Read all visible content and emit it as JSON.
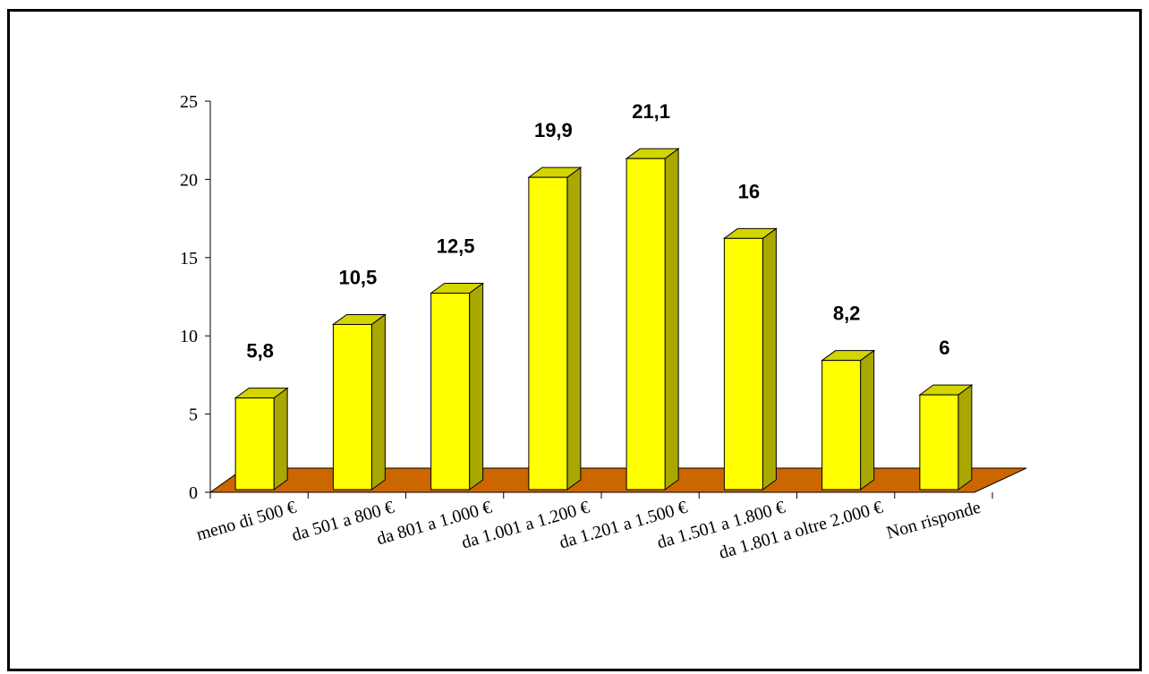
{
  "chart_data": {
    "type": "bar",
    "title": "",
    "xlabel": "",
    "ylabel": "",
    "categories": [
      "meno di 500 €",
      "da 501 a 800 €",
      "da 801 a 1.000 €",
      "da 1.001 a 1.200 €",
      "da 1.201 a 1.500 €",
      "da 1.501 a 1.800 €",
      "da 1.801 a oltre 2.000 €",
      "Non risponde"
    ],
    "values": [
      5.8,
      10.5,
      12.5,
      19.9,
      21.1,
      16,
      8.2,
      6
    ],
    "data_labels": [
      "5,8",
      "10,5",
      "12,5",
      "19,9",
      "21,1",
      "16",
      "8,2",
      "6"
    ],
    "ylim": [
      0,
      25
    ],
    "yticks": [
      0,
      5,
      10,
      15,
      20,
      25
    ],
    "grid": false,
    "legend": "none",
    "colors": {
      "bar_front": "#ffff00",
      "bar_side": "#a8a800",
      "bar_top": "#d4d400",
      "floor": "#cc6600"
    }
  }
}
